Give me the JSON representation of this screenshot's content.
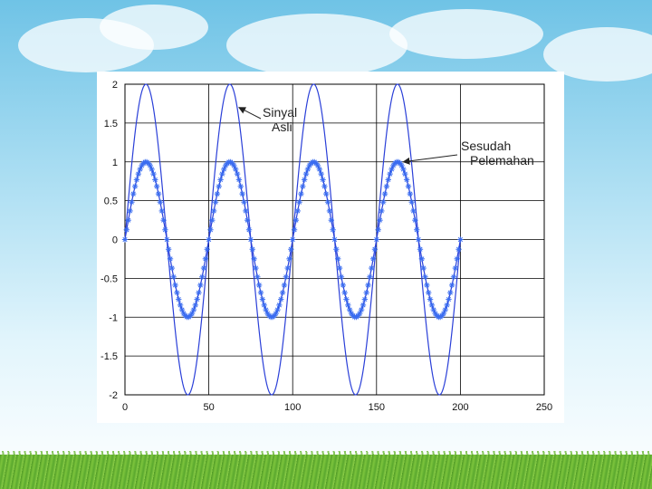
{
  "colors": {
    "signal": "#2a3fd8",
    "marker": "#3a6cf0",
    "grid": "#000000",
    "tick_text": "#111111",
    "annotation_text": "#222222"
  },
  "chart_data": {
    "type": "line",
    "title": "",
    "xlabel": "",
    "ylabel": "",
    "xlim": [
      0,
      250
    ],
    "ylim": [
      -2,
      2
    ],
    "grid": true,
    "xticks": [
      0,
      50,
      100,
      150,
      200,
      250
    ],
    "yticks": [
      2,
      1.5,
      1,
      0.5,
      0,
      -0.5,
      -1,
      -1.5,
      -2
    ],
    "xtick_labels": [
      "0",
      "50",
      "100",
      "150",
      "200",
      "250"
    ],
    "ytick_labels": [
      "2",
      "1.5",
      "1",
      "0.5",
      "0",
      "-0.5",
      "-1",
      "-1.5",
      "-2"
    ],
    "series": [
      {
        "style": "solid-line",
        "amplitude": 2,
        "period": 50,
        "x_range": [
          0,
          200
        ],
        "x": [
          0,
          12.5,
          25,
          37.5,
          50,
          62.5,
          75,
          87.5,
          100,
          112.5,
          125,
          137.5,
          150,
          162.5,
          175,
          187.5,
          200
        ],
        "y": [
          0,
          2,
          0,
          -2,
          0,
          2,
          0,
          -2,
          0,
          2,
          0,
          -2,
          0,
          2,
          0,
          -2,
          0
        ]
      },
      {
        "style": "line-with-asterisk-markers",
        "amplitude": 1,
        "period": 50,
        "x_range": [
          0,
          200
        ],
        "x": [
          0,
          12.5,
          25,
          37.5,
          50,
          62.5,
          75,
          87.5,
          100,
          112.5,
          125,
          137.5,
          150,
          162.5,
          175,
          187.5,
          200
        ],
        "y": [
          0,
          1,
          0,
          -1,
          0,
          1,
          0,
          -1,
          0,
          1,
          0,
          -1,
          0,
          1,
          0,
          -1,
          0
        ]
      }
    ],
    "annotations": [
      {
        "text_lines": [
          "Sinyal",
          "Asli"
        ],
        "arrow_to": [
          68,
          1.7
        ]
      },
      {
        "text_lines": [
          "Sesudah",
          "Pelemahan"
        ],
        "arrow_to": [
          166,
          1.0
        ]
      }
    ]
  }
}
